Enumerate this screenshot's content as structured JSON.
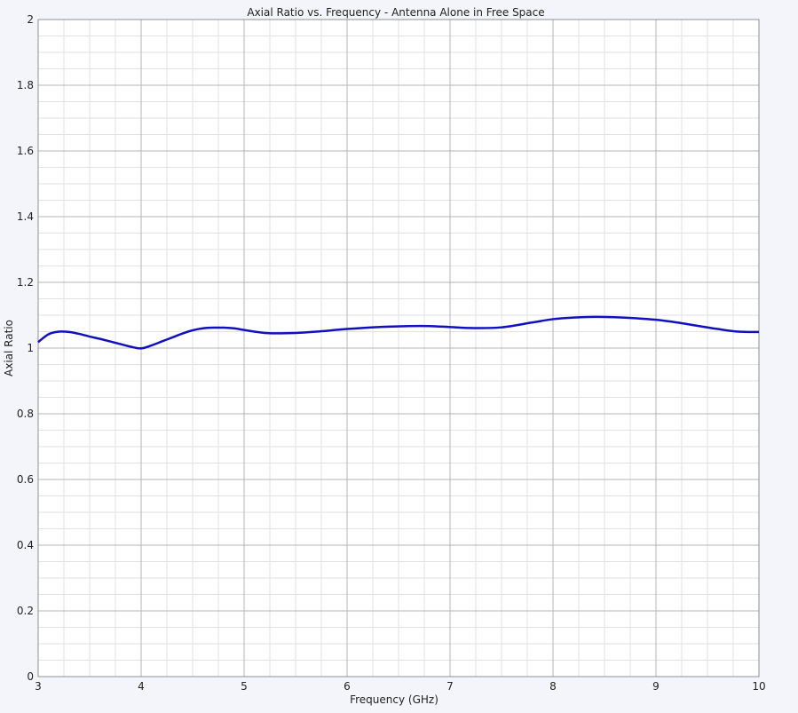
{
  "chart_data": {
    "type": "line",
    "title": "Axial Ratio vs. Frequency - Antenna Alone in Free Space",
    "xlabel": "Frequency (GHz)",
    "ylabel": "Axial Ratio",
    "xlim": [
      3,
      10
    ],
    "ylim": [
      0,
      2
    ],
    "xticks": [
      3,
      4,
      5,
      6,
      7,
      8,
      9,
      10
    ],
    "yticks": [
      0,
      0.2,
      0.4,
      0.6,
      0.8,
      1,
      1.2,
      1.4,
      1.6,
      1.8,
      2
    ],
    "grid": true,
    "legend": "none",
    "colors": {
      "line": "#1010c0",
      "major_grid": "#b4b4b4",
      "minor_grid": "#e2e2e2",
      "background": "#ffffff"
    },
    "series": [
      {
        "x": [
          3.0,
          3.1,
          3.2,
          3.3,
          3.4,
          3.5,
          3.6,
          3.7,
          3.8,
          3.9,
          4.0,
          4.1,
          4.2,
          4.3,
          4.4,
          4.5,
          4.6,
          4.7,
          4.8,
          4.9,
          5.0,
          5.1,
          5.2,
          5.3,
          5.5,
          5.7,
          6.0,
          6.3,
          6.6,
          6.8,
          7.0,
          7.2,
          7.5,
          7.8,
          8.0,
          8.2,
          8.4,
          8.6,
          8.8,
          9.0,
          9.2,
          9.4,
          9.6,
          9.8,
          10.0
        ],
        "y": [
          1.018,
          1.042,
          1.05,
          1.049,
          1.043,
          1.035,
          1.028,
          1.02,
          1.012,
          1.004,
          0.999,
          1.008,
          1.02,
          1.032,
          1.044,
          1.054,
          1.06,
          1.062,
          1.062,
          1.06,
          1.055,
          1.05,
          1.046,
          1.045,
          1.046,
          1.05,
          1.058,
          1.064,
          1.067,
          1.067,
          1.064,
          1.061,
          1.063,
          1.078,
          1.088,
          1.093,
          1.095,
          1.094,
          1.091,
          1.086,
          1.078,
          1.068,
          1.058,
          1.05,
          1.049
        ]
      }
    ]
  }
}
